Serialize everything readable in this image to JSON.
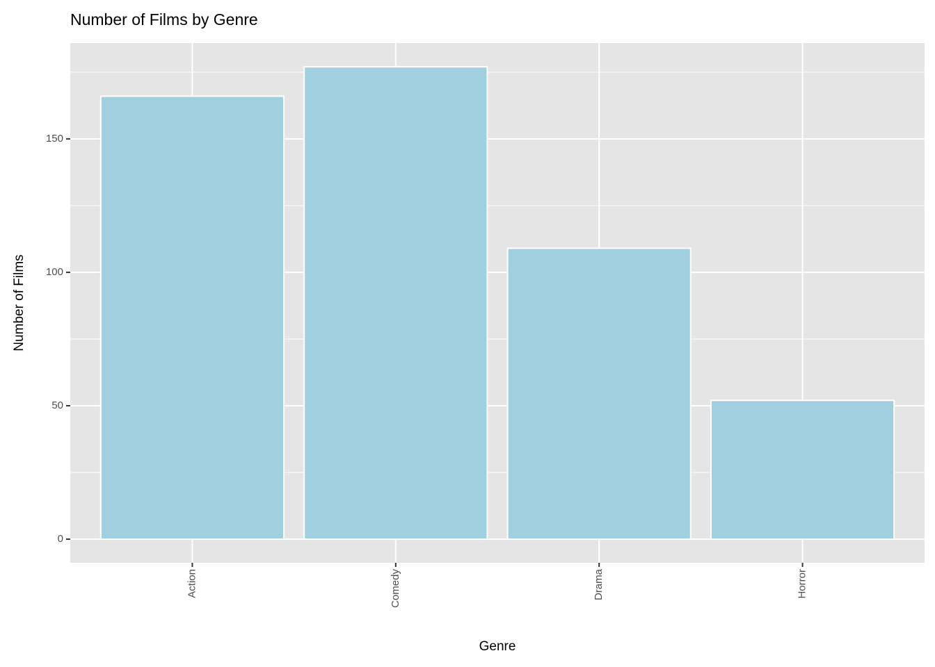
{
  "chart_data": {
    "type": "bar",
    "title": "Number of Films by Genre",
    "x_label": "Genre",
    "y_label": "Number of Films",
    "categories": [
      "Action",
      "Comedy",
      "Drama",
      "Horror"
    ],
    "values": [
      166,
      177,
      109,
      52
    ],
    "color": "#a0cfe0",
    "ylim": [
      -8.85,
      185.9
    ],
    "yticks": [
      0,
      50,
      100,
      150
    ],
    "grid": true
  }
}
